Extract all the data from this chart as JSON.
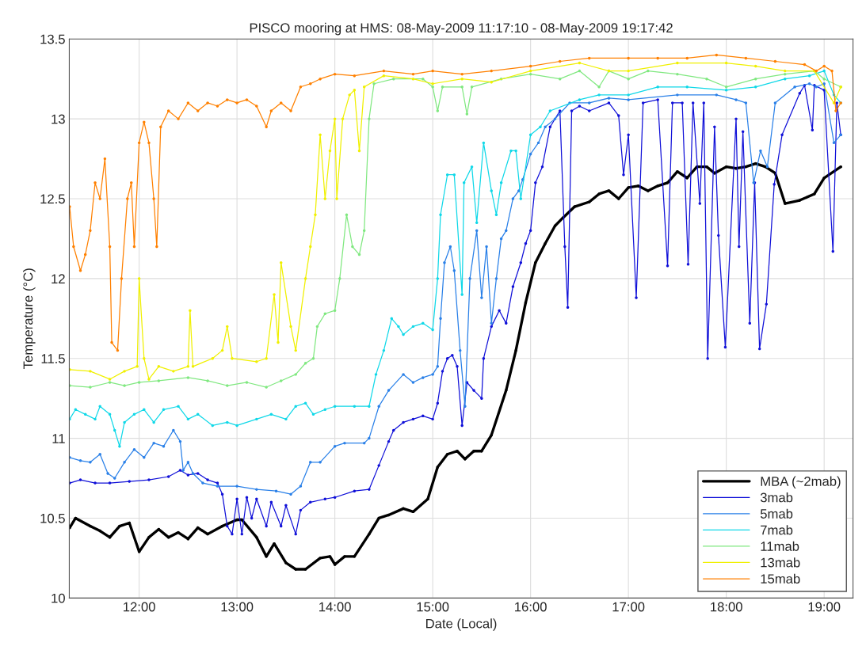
{
  "chart_data": {
    "type": "line",
    "title": "PISCO mooring at HMS: 08-May-2009 11:17:10 - 08-May-2009 19:17:42",
    "xlabel": "Date (Local)",
    "ylabel": "Temperature (°C)",
    "xlim": [
      11.286,
      19.295
    ],
    "xticks": [
      {
        "value": 12,
        "label": "12:00"
      },
      {
        "value": 13,
        "label": "13:00"
      },
      {
        "value": 14,
        "label": "14:00"
      },
      {
        "value": 15,
        "label": "15:00"
      },
      {
        "value": 16,
        "label": "16:00"
      },
      {
        "value": 17,
        "label": "17:00"
      },
      {
        "value": 18,
        "label": "18:00"
      },
      {
        "value": 19,
        "label": "19:00"
      }
    ],
    "ylim": [
      10,
      13.5
    ],
    "yticks": [
      10,
      10.5,
      11,
      11.5,
      12,
      12.5,
      13,
      13.5
    ],
    "grid": true,
    "legend": "bottom right",
    "marker": "circle",
    "line_style": "solid",
    "series": [
      {
        "name": "MBA (~2mab)",
        "color": "#000000",
        "x": [
          11.29,
          11.35,
          11.5,
          11.6,
          11.7,
          11.8,
          11.9,
          12.0,
          12.1,
          12.2,
          12.3,
          12.4,
          12.5,
          12.6,
          12.7,
          12.85,
          13.0,
          13.05,
          13.2,
          13.3,
          13.38,
          13.5,
          13.6,
          13.7,
          13.85,
          13.95,
          14.0,
          14.1,
          14.2,
          14.35,
          14.45,
          14.55,
          14.7,
          14.8,
          14.95,
          15.05,
          15.15,
          15.25,
          15.33,
          15.42,
          15.5,
          15.6,
          15.75,
          15.85,
          15.95,
          16.05,
          16.15,
          16.25,
          16.33,
          16.45,
          16.6,
          16.7,
          16.8,
          16.9,
          17.0,
          17.1,
          17.2,
          17.3,
          17.4,
          17.5,
          17.6,
          17.7,
          17.8,
          17.88,
          18.0,
          18.1,
          18.2,
          18.3,
          18.4,
          18.5,
          18.6,
          18.75,
          18.9,
          19.0,
          19.17
        ],
        "values": [
          10.44,
          10.5,
          10.45,
          10.42,
          10.38,
          10.45,
          10.47,
          10.29,
          10.38,
          10.43,
          10.38,
          10.41,
          10.37,
          10.44,
          10.4,
          10.45,
          10.49,
          10.49,
          10.38,
          10.26,
          10.34,
          10.22,
          10.18,
          10.18,
          10.25,
          10.26,
          10.21,
          10.26,
          10.26,
          10.4,
          10.5,
          10.52,
          10.56,
          10.54,
          10.62,
          10.82,
          10.9,
          10.92,
          10.87,
          10.92,
          10.92,
          11.02,
          11.3,
          11.55,
          11.85,
          12.1,
          12.22,
          12.33,
          12.38,
          12.45,
          12.48,
          12.53,
          12.55,
          12.5,
          12.57,
          12.58,
          12.55,
          12.58,
          12.6,
          12.67,
          12.63,
          12.7,
          12.7,
          12.66,
          12.7,
          12.69,
          12.7,
          12.72,
          12.7,
          12.66,
          12.47,
          12.49,
          12.53,
          12.63,
          12.7
        ]
      },
      {
        "name": "3mab",
        "color": "#1010d8",
        "x": [
          11.29,
          11.4,
          11.55,
          11.7,
          11.9,
          12.1,
          12.3,
          12.42,
          12.5,
          12.6,
          12.7,
          12.8,
          12.85,
          12.9,
          12.95,
          13.0,
          13.05,
          13.1,
          13.15,
          13.2,
          13.3,
          13.35,
          13.45,
          13.5,
          13.6,
          13.65,
          13.75,
          13.9,
          14.0,
          14.2,
          14.35,
          14.45,
          14.55,
          14.6,
          14.7,
          14.8,
          14.9,
          15.0,
          15.05,
          15.1,
          15.15,
          15.2,
          15.25,
          15.3,
          15.35,
          15.42,
          15.5,
          15.52,
          15.6,
          15.68,
          15.75,
          15.82,
          15.9,
          15.95,
          16.0,
          16.05,
          16.12,
          16.2,
          16.3,
          16.35,
          16.38,
          16.42,
          16.5,
          16.6,
          16.8,
          16.9,
          16.95,
          17.0,
          17.08,
          17.15,
          17.3,
          17.4,
          17.45,
          17.55,
          17.61,
          17.66,
          17.73,
          17.77,
          17.81,
          17.88,
          17.92,
          17.99,
          18.1,
          18.13,
          18.17,
          18.24,
          18.29,
          18.34,
          18.41,
          18.49,
          18.57,
          18.75,
          18.8,
          18.88,
          18.9,
          19.0,
          19.09,
          19.13,
          19.17
        ],
        "values": [
          10.72,
          10.74,
          10.72,
          10.72,
          10.73,
          10.74,
          10.76,
          10.8,
          10.77,
          10.78,
          10.74,
          10.72,
          10.65,
          10.45,
          10.4,
          10.62,
          10.4,
          10.63,
          10.5,
          10.62,
          10.45,
          10.6,
          10.45,
          10.58,
          10.4,
          10.55,
          10.6,
          10.62,
          10.63,
          10.67,
          10.68,
          10.83,
          10.98,
          11.05,
          11.1,
          11.12,
          11.14,
          11.12,
          11.22,
          11.42,
          11.5,
          11.52,
          11.45,
          11.08,
          11.35,
          11.3,
          11.25,
          11.5,
          11.7,
          11.8,
          11.72,
          11.95,
          12.1,
          12.22,
          12.3,
          12.6,
          12.7,
          12.95,
          13.05,
          12.2,
          11.82,
          13.05,
          13.08,
          13.05,
          13.1,
          13.02,
          12.65,
          12.9,
          11.88,
          13.1,
          13.12,
          12.08,
          13.1,
          13.1,
          12.09,
          13.1,
          12.47,
          13.1,
          11.5,
          12.95,
          12.27,
          11.57,
          13.0,
          12.2,
          12.92,
          11.72,
          12.6,
          11.56,
          11.84,
          12.59,
          12.9,
          13.16,
          13.21,
          12.93,
          13.21,
          13.18,
          12.17,
          13.1,
          12.9
        ]
      },
      {
        "name": "5mab",
        "color": "#2a80e8",
        "x": [
          11.29,
          11.4,
          11.5,
          11.6,
          11.68,
          11.75,
          11.85,
          11.95,
          12.05,
          12.15,
          12.25,
          12.35,
          12.42,
          12.45,
          12.5,
          12.55,
          12.65,
          12.8,
          13.0,
          13.2,
          13.4,
          13.55,
          13.65,
          13.75,
          13.85,
          14.0,
          14.1,
          14.3,
          14.35,
          14.45,
          14.55,
          14.7,
          14.8,
          14.9,
          15.0,
          15.05,
          15.08,
          15.12,
          15.18,
          15.22,
          15.28,
          15.33,
          15.38,
          15.45,
          15.5,
          15.55,
          15.6,
          15.65,
          15.7,
          15.75,
          15.82,
          15.88,
          15.92,
          16.0,
          16.08,
          16.15,
          16.25,
          16.4,
          16.6,
          16.8,
          17.0,
          17.5,
          17.9,
          18.1,
          18.2,
          18.28,
          18.35,
          18.42,
          18.5,
          18.7,
          18.85,
          18.92,
          19.0,
          19.1,
          19.17
        ],
        "values": [
          10.88,
          10.86,
          10.85,
          10.9,
          10.78,
          10.75,
          10.85,
          10.93,
          10.88,
          10.97,
          10.95,
          11.05,
          10.98,
          10.8,
          10.85,
          10.78,
          10.72,
          10.7,
          10.7,
          10.68,
          10.67,
          10.65,
          10.7,
          10.85,
          10.85,
          10.95,
          10.97,
          10.97,
          11.0,
          11.2,
          11.3,
          11.4,
          11.35,
          11.38,
          11.4,
          11.45,
          11.75,
          12.1,
          12.2,
          12.05,
          11.55,
          11.2,
          12.0,
          12.3,
          11.88,
          12.2,
          11.72,
          12.0,
          12.25,
          12.3,
          12.5,
          12.55,
          12.62,
          12.78,
          12.85,
          12.95,
          13.0,
          13.1,
          13.1,
          13.13,
          13.12,
          13.15,
          13.15,
          13.12,
          13.1,
          12.6,
          12.8,
          12.7,
          13.1,
          13.2,
          13.22,
          13.2,
          13.22,
          12.85,
          12.9
        ]
      },
      {
        "name": "7mab",
        "color": "#10d8e8",
        "x": [
          11.29,
          11.35,
          11.45,
          11.55,
          11.6,
          11.7,
          11.75,
          11.8,
          11.85,
          11.95,
          12.05,
          12.15,
          12.25,
          12.4,
          12.5,
          12.6,
          12.75,
          12.9,
          13.0,
          13.2,
          13.35,
          13.5,
          13.6,
          13.7,
          13.78,
          13.9,
          14.0,
          14.2,
          14.35,
          14.42,
          14.5,
          14.58,
          14.65,
          14.7,
          14.8,
          14.9,
          15.0,
          15.05,
          15.08,
          15.15,
          15.22,
          15.3,
          15.32,
          15.4,
          15.45,
          15.52,
          15.6,
          15.65,
          15.7,
          15.8,
          15.85,
          15.9,
          16.0,
          16.1,
          16.2,
          16.5,
          16.7,
          17.0,
          17.3,
          17.6,
          18.0,
          18.3,
          18.6,
          18.85,
          19.0,
          19.1,
          19.17
        ],
        "values": [
          11.12,
          11.18,
          11.15,
          11.12,
          11.2,
          11.15,
          11.05,
          10.95,
          11.1,
          11.15,
          11.18,
          11.1,
          11.18,
          11.2,
          11.12,
          11.15,
          11.08,
          11.1,
          11.08,
          11.12,
          11.15,
          11.12,
          11.2,
          11.22,
          11.15,
          11.18,
          11.2,
          11.2,
          11.2,
          11.4,
          11.55,
          11.75,
          11.7,
          11.65,
          11.7,
          11.72,
          11.68,
          12.0,
          12.4,
          12.65,
          12.65,
          11.9,
          12.6,
          12.7,
          12.35,
          12.85,
          12.55,
          12.4,
          12.6,
          12.8,
          12.8,
          12.5,
          12.9,
          12.95,
          13.05,
          13.12,
          13.15,
          13.15,
          13.2,
          13.2,
          13.18,
          13.2,
          13.25,
          13.27,
          13.3,
          13.15,
          13.1
        ]
      },
      {
        "name": "11mab",
        "color": "#80e880",
        "x": [
          11.29,
          11.5,
          11.7,
          11.85,
          12.0,
          12.2,
          12.5,
          12.7,
          12.9,
          13.1,
          13.3,
          13.45,
          13.6,
          13.7,
          13.78,
          13.82,
          13.9,
          14.0,
          14.05,
          14.12,
          14.18,
          14.25,
          14.3,
          14.35,
          14.4,
          14.6,
          14.9,
          15.0,
          15.05,
          15.1,
          15.3,
          15.35,
          15.4,
          15.7,
          16.0,
          16.3,
          16.5,
          16.7,
          16.8,
          17.0,
          17.2,
          17.5,
          17.8,
          18.0,
          18.3,
          18.6,
          18.9,
          19.0,
          19.17
        ],
        "values": [
          11.33,
          11.32,
          11.35,
          11.33,
          11.35,
          11.36,
          11.38,
          11.36,
          11.33,
          11.35,
          11.32,
          11.36,
          11.4,
          11.47,
          11.5,
          11.7,
          11.78,
          11.8,
          12.0,
          12.4,
          12.2,
          12.15,
          12.3,
          13.0,
          13.22,
          13.25,
          13.25,
          13.2,
          13.05,
          13.2,
          13.2,
          13.03,
          13.2,
          13.25,
          13.28,
          13.25,
          13.3,
          13.2,
          13.3,
          13.25,
          13.3,
          13.28,
          13.25,
          13.2,
          13.25,
          13.28,
          13.3,
          13.25,
          13.2
        ]
      },
      {
        "name": "13mab",
        "color": "#f0f000",
        "x": [
          11.29,
          11.5,
          11.7,
          11.85,
          11.98,
          12.0,
          12.05,
          12.1,
          12.2,
          12.35,
          12.5,
          12.52,
          12.55,
          12.75,
          12.85,
          12.9,
          12.95,
          13.2,
          13.3,
          13.38,
          13.42,
          13.45,
          13.55,
          13.6,
          13.7,
          13.75,
          13.8,
          13.85,
          13.9,
          13.95,
          14.0,
          14.02,
          14.08,
          14.15,
          14.2,
          14.25,
          14.3,
          14.5,
          14.8,
          15.0,
          15.3,
          15.6,
          16.0,
          16.5,
          16.8,
          17.0,
          17.5,
          18.0,
          18.3,
          18.6,
          18.9,
          19.1,
          19.17
        ],
        "values": [
          11.43,
          11.42,
          11.37,
          11.42,
          11.45,
          12.0,
          11.5,
          11.37,
          11.45,
          11.42,
          11.45,
          11.8,
          11.45,
          11.5,
          11.55,
          11.7,
          11.5,
          11.48,
          11.5,
          11.9,
          11.6,
          12.1,
          11.7,
          11.55,
          12.0,
          12.2,
          12.4,
          12.9,
          12.5,
          12.8,
          13.0,
          12.5,
          13.0,
          13.15,
          13.18,
          12.8,
          13.2,
          13.27,
          13.25,
          13.22,
          13.25,
          13.23,
          13.3,
          13.35,
          13.3,
          13.3,
          13.35,
          13.35,
          13.33,
          13.3,
          13.3,
          13.1,
          13.2
        ]
      },
      {
        "name": "15mab",
        "color": "#ff8000",
        "x": [
          11.29,
          11.33,
          11.4,
          11.45,
          11.5,
          11.55,
          11.6,
          11.65,
          11.7,
          11.72,
          11.78,
          11.82,
          11.88,
          11.92,
          11.95,
          12.0,
          12.05,
          12.1,
          12.15,
          12.18,
          12.22,
          12.3,
          12.4,
          12.5,
          12.6,
          12.7,
          12.8,
          12.9,
          13.0,
          13.1,
          13.2,
          13.3,
          13.35,
          13.45,
          13.55,
          13.65,
          13.75,
          13.85,
          14.0,
          14.2,
          14.5,
          14.8,
          15.0,
          15.3,
          15.6,
          16.0,
          16.3,
          16.6,
          17.0,
          17.3,
          17.6,
          17.9,
          18.2,
          18.5,
          18.8,
          18.92,
          19.0,
          19.08,
          19.12,
          19.17
        ],
        "values": [
          12.45,
          12.2,
          12.05,
          12.15,
          12.3,
          12.6,
          12.5,
          12.75,
          12.2,
          11.6,
          11.55,
          12.0,
          12.5,
          12.6,
          12.2,
          12.85,
          12.98,
          12.85,
          12.5,
          12.2,
          12.95,
          13.05,
          13.0,
          13.1,
          13.05,
          13.1,
          13.08,
          13.12,
          13.1,
          13.12,
          13.08,
          12.95,
          13.05,
          13.1,
          13.05,
          13.2,
          13.22,
          13.25,
          13.28,
          13.27,
          13.3,
          13.28,
          13.3,
          13.28,
          13.3,
          13.33,
          13.36,
          13.38,
          13.38,
          13.38,
          13.38,
          13.4,
          13.38,
          13.36,
          13.34,
          13.3,
          13.33,
          13.3,
          13.05,
          13.1
        ]
      }
    ]
  }
}
